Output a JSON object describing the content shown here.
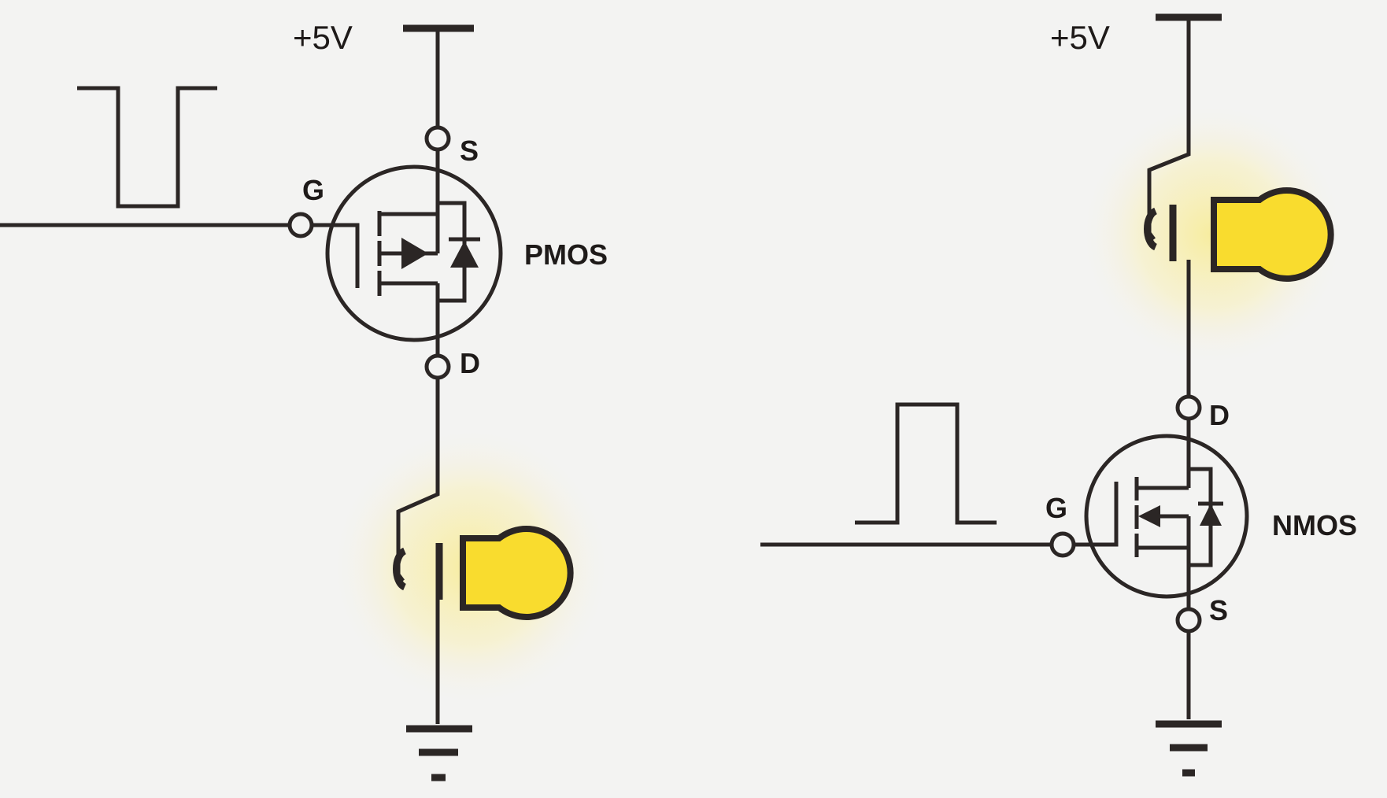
{
  "colors": {
    "background": "#f3f3f2",
    "ink": "#2b2625",
    "lamp": "#f9dc2e",
    "glow": "#f7ec9a"
  },
  "left_circuit": {
    "supply": "+5V",
    "transistor_type": "PMOS",
    "pins": {
      "source": "S",
      "gate": "G",
      "drain": "D"
    },
    "gate_signal": "low pulse",
    "lamp_state": "on"
  },
  "right_circuit": {
    "supply": "+5V",
    "transistor_type": "NMOS",
    "pins": {
      "drain": "D",
      "gate": "G",
      "source": "S"
    },
    "gate_signal": "high pulse",
    "lamp_state": "on"
  }
}
